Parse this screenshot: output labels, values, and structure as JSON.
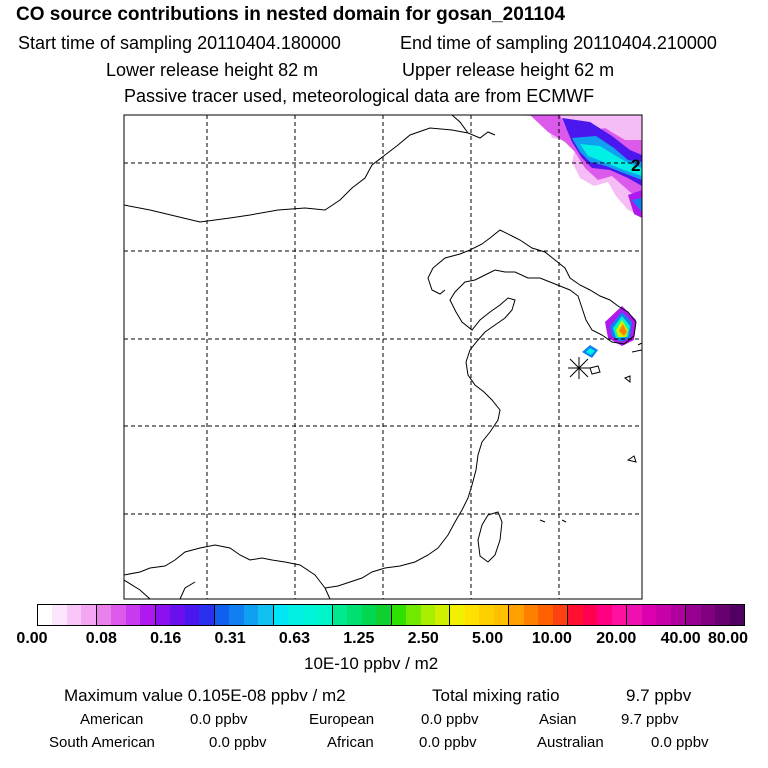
{
  "title": "CO  source contributions in nested domain for gosan_201104",
  "header": {
    "start_label": "Start time of sampling 20110404.180000",
    "end_label": "End time of sampling 20110404.210000",
    "lower_label": "Lower release height   82 m",
    "upper_label": "Upper release height   62 m",
    "tracer_note": "Passive tracer used, meteorological data are from ECMWF"
  },
  "map": {
    "contour_label": "2",
    "colors": {
      "frame": "#000000",
      "grid": "#000000",
      "coast": "#000000"
    }
  },
  "colorbar": {
    "ticks": [
      "0.00",
      "0.08",
      "0.16",
      "0.31",
      "0.63",
      "1.25",
      "2.50",
      "5.00",
      "10.00",
      "20.00",
      "40.00",
      "80.00"
    ],
    "unit": "10E-10 ppbv / m2",
    "segment_colors": [
      [
        "#ffffff",
        "#fde6fd",
        "#f8c6f8",
        "#f3a6f3"
      ],
      [
        "#ea80ea",
        "#dc5aeb",
        "#c83aee",
        "#b018f0"
      ],
      [
        "#8c10f0",
        "#6a10ef",
        "#4a18ee",
        "#2a30ef"
      ],
      [
        "#1060f0",
        "#1080f0",
        "#10a0f0",
        "#10c0f0"
      ],
      [
        "#00e6f5",
        "#00f0e6",
        "#00f5d8",
        "#00f5c8"
      ],
      [
        "#00e890",
        "#00e070",
        "#00d850",
        "#10d030"
      ],
      [
        "#30e000",
        "#70e800",
        "#a8ee00",
        "#d0f000"
      ],
      [
        "#f0f000",
        "#ffe000",
        "#ffd000",
        "#ffc000"
      ],
      [
        "#ffa000",
        "#ff8000",
        "#ff6000",
        "#ff4010"
      ],
      [
        "#ff1030",
        "#ff0050",
        "#ff0080",
        "#ff10a0"
      ],
      [
        "#f010b0",
        "#dd00b0",
        "#c800a8",
        "#b0009e"
      ],
      [
        "#980092",
        "#800080",
        "#680070",
        "#500060"
      ]
    ]
  },
  "stats": {
    "max_value": "Maximum value  0.105E-08 ppbv / m2",
    "total_mixing": "Total mixing ratio",
    "total_value": "9.7 ppbv",
    "regions": [
      {
        "name": "American",
        "value": "0.0 ppbv"
      },
      {
        "name": "European",
        "value": "0.0 ppbv"
      },
      {
        "name": "Asian",
        "value": "9.7 ppbv"
      },
      {
        "name": "South American",
        "value": "0.0 ppbv"
      },
      {
        "name": "African",
        "value": "0.0 ppbv"
      },
      {
        "name": "Australian",
        "value": "0.0 ppbv"
      }
    ]
  }
}
